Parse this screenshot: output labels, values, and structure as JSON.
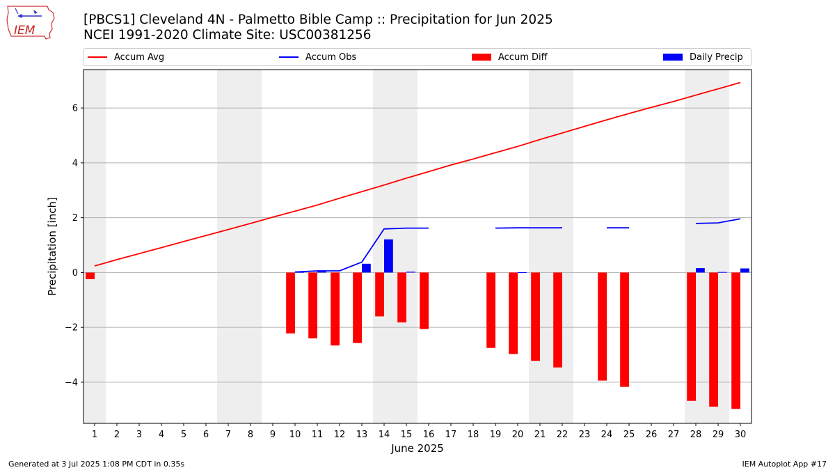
{
  "header": {
    "title_line1": "[PBCS1] Cleveland 4N - Palmetto Bible Camp :: Precipitation for Jun 2025",
    "title_line2": "NCEI 1991-2020 Climate Site: USC00381256",
    "logo_text": "IEM"
  },
  "footer": {
    "generated": "Generated at 3 Jul 2025 1:08 PM CDT in 0.35s",
    "app": "IEM Autoplot App #17"
  },
  "colors": {
    "avg": "#ff0000",
    "obs": "#0000ff",
    "diff": "#ff0000",
    "precip": "#0000ff",
    "weekend_shade": "#eeeeee",
    "grid": "#b0b0b0"
  },
  "chart_data": {
    "type": "bar",
    "xlabel": "June 2025",
    "ylabel": "Precipitation [inch]",
    "xlim": [
      0.5,
      30.5
    ],
    "ylim": [
      -5.5,
      7.4
    ],
    "yticks": [
      -4,
      -2,
      0,
      2,
      4,
      6
    ],
    "days": [
      1,
      2,
      3,
      4,
      5,
      6,
      7,
      8,
      9,
      10,
      11,
      12,
      13,
      14,
      15,
      16,
      17,
      18,
      19,
      20,
      21,
      22,
      23,
      24,
      25,
      26,
      27,
      28,
      29,
      30
    ],
    "grid": "horizontal",
    "legend_placement": "top",
    "weekend_shading": [
      [
        0.5,
        1.5
      ],
      [
        6.5,
        8.5
      ],
      [
        13.5,
        15.5
      ],
      [
        20.5,
        22.5
      ],
      [
        27.5,
        29.5
      ]
    ],
    "series": [
      {
        "name": "Accum Avg",
        "kind": "line",
        "values": [
          0.24,
          0.47,
          0.69,
          0.91,
          1.13,
          1.35,
          1.57,
          1.79,
          2.02,
          2.24,
          2.46,
          2.71,
          2.95,
          3.19,
          3.44,
          3.68,
          3.92,
          4.14,
          4.37,
          4.6,
          4.85,
          5.09,
          5.33,
          5.57,
          5.8,
          6.02,
          6.24,
          6.47,
          6.7,
          6.93
        ]
      },
      {
        "name": "Accum Obs",
        "kind": "line",
        "values": [
          null,
          null,
          null,
          null,
          null,
          null,
          null,
          null,
          null,
          0.02,
          0.06,
          0.06,
          0.38,
          1.59,
          1.62,
          1.62,
          null,
          null,
          1.62,
          1.63,
          1.63,
          1.63,
          null,
          1.63,
          1.63,
          null,
          null,
          1.79,
          1.81,
          1.96
        ]
      },
      {
        "name": "Accum Diff",
        "kind": "bar",
        "values": [
          -0.24,
          null,
          null,
          null,
          null,
          null,
          null,
          null,
          null,
          -2.22,
          -2.4,
          -2.66,
          -2.57,
          -1.6,
          -1.82,
          -2.06,
          null,
          null,
          -2.75,
          -2.97,
          -3.22,
          -3.46,
          null,
          -3.94,
          -4.17,
          null,
          null,
          -4.68,
          -4.89,
          -4.97
        ]
      },
      {
        "name": "Daily Precip",
        "kind": "bar",
        "values": [
          null,
          null,
          null,
          null,
          null,
          null,
          null,
          null,
          null,
          0.02,
          0.04,
          0.0,
          0.32,
          1.21,
          0.03,
          0.0,
          null,
          null,
          0.0,
          0.01,
          0.0,
          0.0,
          null,
          0.0,
          0.0,
          null,
          null,
          0.16,
          0.02,
          0.15
        ]
      }
    ]
  }
}
